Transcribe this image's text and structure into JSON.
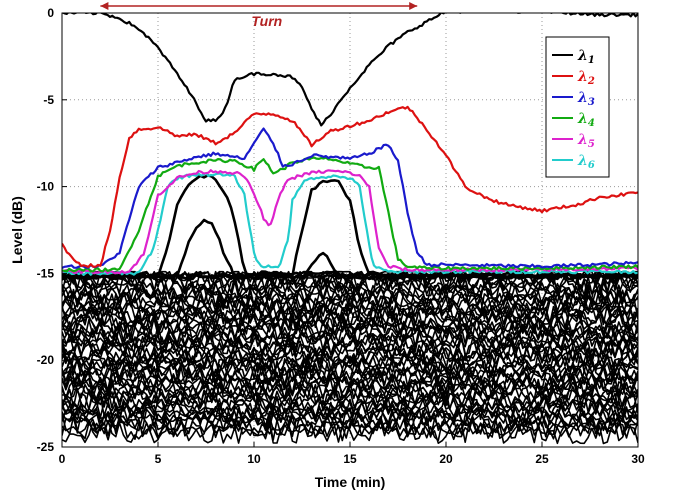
{
  "chart_data": {
    "type": "line",
    "title": "",
    "xlabel": "Time (min)",
    "ylabel": "Level (dB)",
    "xlim": [
      0,
      30
    ],
    "ylim": [
      -25,
      0
    ],
    "xticks": [
      0,
      5,
      10,
      15,
      20,
      25,
      30
    ],
    "yticks": [
      0,
      -5,
      -10,
      -15,
      -20,
      -25
    ],
    "grid": true,
    "legend_position": "top-right",
    "annotation": {
      "text": "Turn",
      "x_start": 2,
      "x_end": 18.5,
      "y": 0.4,
      "color": "#b22222"
    },
    "series": [
      {
        "name": "λ1",
        "symbol": "λ",
        "sub": "1",
        "color": "#000000",
        "x": [
          0,
          2,
          3,
          4,
          5,
          6,
          7,
          7.5,
          8,
          8.5,
          9,
          10,
          11,
          12,
          12.5,
          13,
          13.5,
          14,
          15,
          16,
          17,
          18,
          19,
          19.5,
          20,
          22,
          25,
          28,
          30
        ],
        "y": [
          0,
          0,
          -0.3,
          -0.9,
          -2.0,
          -3.5,
          -5.2,
          -6.2,
          -6.2,
          -5.5,
          -3.8,
          -3.5,
          -3.5,
          -3.7,
          -4.3,
          -5.5,
          -6.5,
          -5.8,
          -4.3,
          -3.0,
          -1.9,
          -1.1,
          -0.5,
          -0.2,
          0.1,
          0.1,
          0.1,
          -0.1,
          -0.1
        ]
      },
      {
        "name": "λ2",
        "symbol": "λ",
        "sub": "2",
        "color": "#dd1111",
        "x": [
          0,
          0.5,
          1,
          2,
          2.5,
          3,
          3.5,
          4,
          5,
          5.5,
          6,
          7,
          8,
          9,
          10,
          11,
          12,
          13,
          14,
          15,
          16,
          17,
          18,
          19,
          20,
          21,
          22,
          23,
          25,
          27,
          28,
          29,
          30
        ],
        "y": [
          -13.3,
          -14.1,
          -14.5,
          -14.6,
          -12.5,
          -9.5,
          -7.2,
          -6.7,
          -6.6,
          -6.8,
          -7.1,
          -7.0,
          -7.5,
          -6.9,
          -5.8,
          -5.8,
          -6.2,
          -7.6,
          -6.8,
          -6.5,
          -6.2,
          -5.7,
          -5.4,
          -6.7,
          -8.2,
          -10.0,
          -10.6,
          -11.0,
          -11.4,
          -11.0,
          -10.6,
          -10.5,
          -10.3
        ]
      },
      {
        "name": "λ3",
        "symbol": "λ",
        "sub": "3",
        "color": "#1a1acc",
        "x": [
          0,
          2,
          3,
          4,
          5,
          6,
          7,
          8,
          9,
          9.5,
          10,
          10.5,
          11,
          11.5,
          12,
          13,
          14,
          15,
          16,
          16.5,
          17,
          17.5,
          18,
          18.5,
          19,
          20,
          25,
          30
        ],
        "y": [
          -14.6,
          -14.6,
          -13.8,
          -10.0,
          -8.9,
          -8.6,
          -8.3,
          -8.1,
          -8.3,
          -8.4,
          -7.5,
          -6.7,
          -7.5,
          -8.8,
          -8.7,
          -8.2,
          -8.3,
          -8.4,
          -8.1,
          -7.8,
          -7.6,
          -8.5,
          -11.5,
          -13.8,
          -14.5,
          -14.5,
          -14.6,
          -14.4
        ]
      },
      {
        "name": "λ4",
        "symbol": "λ",
        "sub": "4",
        "color": "#11aa11",
        "x": [
          0,
          3,
          4,
          5,
          6,
          7,
          8,
          9,
          10,
          10.5,
          11,
          11.5,
          12,
          13,
          14,
          15,
          16,
          16.5,
          17,
          17.5,
          18,
          19,
          25,
          30
        ],
        "y": [
          -14.8,
          -14.8,
          -12.5,
          -9.4,
          -8.8,
          -8.6,
          -8.5,
          -8.5,
          -9.0,
          -8.4,
          -9.2,
          -9.0,
          -8.6,
          -8.4,
          -8.4,
          -8.7,
          -8.9,
          -8.9,
          -11.5,
          -14.2,
          -14.6,
          -14.7,
          -14.7,
          -14.6
        ]
      },
      {
        "name": "λ5",
        "symbol": "λ",
        "sub": "5",
        "color": "#dd22cc",
        "x": [
          0,
          3.5,
          4.3,
          5,
          6,
          7,
          8,
          9,
          9.5,
          10,
          10.5,
          10.8,
          11.2,
          11.6,
          12,
          13,
          14,
          15,
          15.5,
          16,
          16.5,
          17,
          18,
          25,
          30
        ],
        "y": [
          -14.9,
          -14.9,
          -13.8,
          -10.5,
          -9.5,
          -9.2,
          -9.1,
          -9.2,
          -9.4,
          -10.4,
          -11.8,
          -12.4,
          -11.0,
          -9.8,
          -9.5,
          -9.2,
          -9.1,
          -9.2,
          -9.4,
          -10.0,
          -13.6,
          -14.6,
          -14.8,
          -14.8,
          -14.7
        ]
      },
      {
        "name": "λ6",
        "symbol": "λ",
        "sub": "6",
        "color": "#22cccc",
        "x": [
          0,
          4,
          4.8,
          5.5,
          6,
          7,
          8,
          9,
          9.5,
          10,
          10.3,
          11.3,
          11.8,
          12,
          12.5,
          13,
          14,
          15,
          15.5,
          15.8,
          16.2,
          17,
          25,
          30
        ],
        "y": [
          -15.0,
          -15.0,
          -13.5,
          -10.0,
          -9.5,
          -9.3,
          -9.3,
          -9.4,
          -10.5,
          -13.8,
          -14.6,
          -14.6,
          -13.0,
          -10.8,
          -9.8,
          -9.5,
          -9.4,
          -9.5,
          -10.0,
          -12.0,
          -14.6,
          -14.9,
          -14.9,
          -14.9
        ]
      }
    ],
    "background_channels": {
      "color": "#000000",
      "count": 55,
      "x": [
        0,
        30
      ],
      "level_range": [
        -24.2,
        -15.0
      ],
      "noise_amplitude": 0.6,
      "peaked_channels": [
        {
          "x": [
            0,
            5,
            5.5,
            6,
            6.5,
            7,
            7.5,
            8,
            8.5,
            9,
            9.5,
            30
          ],
          "y": [
            -15.1,
            -15.1,
            -13.5,
            -11.0,
            -10.0,
            -9.5,
            -9.4,
            -9.6,
            -10.3,
            -12.0,
            -15.0,
            -15.1
          ]
        },
        {
          "x": [
            0,
            6,
            6.5,
            7,
            7.5,
            8,
            8.5,
            9,
            30
          ],
          "y": [
            -15.2,
            -15.2,
            -13.5,
            -12.3,
            -11.8,
            -12.5,
            -14.0,
            -15.2,
            -15.2
          ]
        },
        {
          "x": [
            0,
            12,
            12.5,
            13,
            13.5,
            14,
            14.5,
            15,
            15.5,
            16,
            30
          ],
          "y": [
            -15.1,
            -15.1,
            -12.5,
            -10.2,
            -9.8,
            -9.7,
            -9.8,
            -10.8,
            -13.5,
            -15.1,
            -15.1
          ]
        },
        {
          "x": [
            0,
            12.5,
            13,
            13.5,
            14,
            14.5,
            30
          ],
          "y": [
            -15.2,
            -15.2,
            -14.6,
            -13.7,
            -14.4,
            -15.2,
            -15.2
          ]
        }
      ]
    }
  }
}
